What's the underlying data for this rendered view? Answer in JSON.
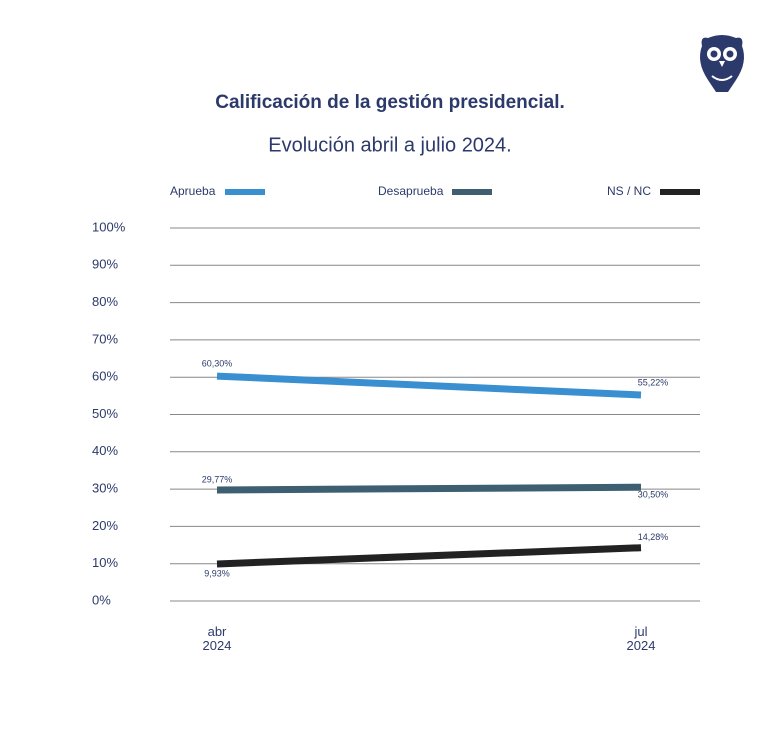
{
  "chart_data": {
    "type": "line",
    "title": "Calificación de la gestión presidencial.",
    "subtitle": "Evolución abril a julio 2024.",
    "categories": [
      "abr 2024",
      "jul 2024"
    ],
    "series": [
      {
        "name": "Aprueba",
        "color": "#3a8fd0",
        "values": [
          60.3,
          55.22
        ],
        "value_labels": [
          "60,30%",
          "55,22%"
        ]
      },
      {
        "name": "Desaprueba",
        "color": "#3e5f72",
        "values": [
          29.77,
          30.5
        ],
        "value_labels": [
          "29,77%",
          "30,50%"
        ]
      },
      {
        "name": "NS / NC",
        "color": "#222222",
        "values": [
          9.93,
          14.28
        ],
        "value_labels": [
          "9,93%",
          "14,28%"
        ]
      }
    ],
    "ylim": [
      0,
      100
    ],
    "yticks": [
      {
        "value": 0,
        "label": "0%"
      },
      {
        "value": 10,
        "label": "10%"
      },
      {
        "value": 20,
        "label": "20%"
      },
      {
        "value": 30,
        "label": "30%"
      },
      {
        "value": 40,
        "label": "40%"
      },
      {
        "value": 50,
        "label": "50%"
      },
      {
        "value": 60,
        "label": "60%"
      },
      {
        "value": 70,
        "label": "70%"
      },
      {
        "value": 80,
        "label": "80%"
      },
      {
        "value": 90,
        "label": "90%"
      },
      {
        "value": 100,
        "label": "100%"
      }
    ],
    "grid": true,
    "legend": "top"
  }
}
